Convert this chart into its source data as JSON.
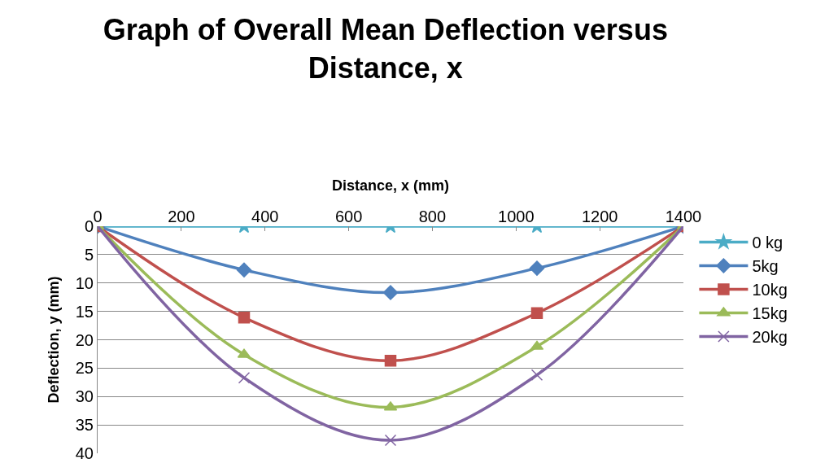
{
  "chart_data": {
    "type": "line",
    "title": "Graph of Overall Mean Deflection versus Distance, x",
    "xlabel": "Distance, x (mm)",
    "ylabel": "Deflection, y (mm)",
    "x": [
      0,
      350,
      700,
      1050,
      1400
    ],
    "series": [
      {
        "name": "0 kg",
        "color": "#4bacc6",
        "marker": "star",
        "values": [
          0,
          0,
          0,
          0,
          0
        ]
      },
      {
        "name": "5kg",
        "color": "#4f81bd",
        "marker": "diamond",
        "values": [
          0,
          7.7,
          11.7,
          7.4,
          0
        ]
      },
      {
        "name": "10kg",
        "color": "#c0504d",
        "marker": "square",
        "values": [
          0,
          16.1,
          23.7,
          15.3,
          0
        ]
      },
      {
        "name": "15kg",
        "color": "#9bbb59",
        "marker": "triangle",
        "values": [
          0,
          22.6,
          31.9,
          21.2,
          0
        ]
      },
      {
        "name": "20kg",
        "color": "#8064a2",
        "marker": "cross",
        "values": [
          0,
          26.7,
          37.7,
          26.2,
          0
        ]
      }
    ],
    "xlim": [
      0,
      1400
    ],
    "xticks": [
      0,
      200,
      400,
      600,
      800,
      1000,
      1200,
      1400
    ],
    "ylim": [
      40,
      0
    ],
    "yticks": [
      0,
      5,
      10,
      15,
      20,
      25,
      30,
      35,
      40
    ],
    "grid": "y",
    "legend": "right",
    "line_style": "solid"
  }
}
